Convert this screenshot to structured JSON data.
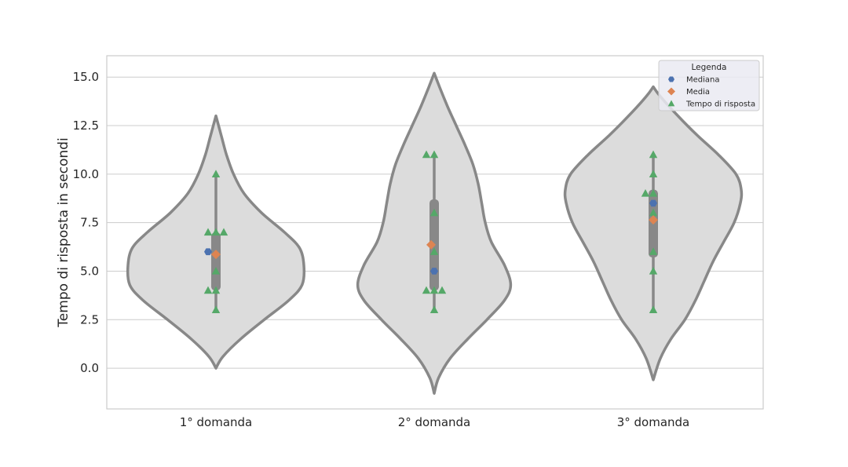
{
  "chart_data": {
    "type": "violin",
    "title": "",
    "xlabel": "",
    "ylabel": "Tempo di risposta in secondi",
    "ylim": [
      -2.1,
      16.1
    ],
    "yticks": [
      0.0,
      2.5,
      5.0,
      7.5,
      10.0,
      12.5,
      15.0
    ],
    "ytick_labels": [
      "0.0",
      "2.5",
      "5.0",
      "7.5",
      "10.0",
      "12.5",
      "15.0"
    ],
    "categories": [
      "1° domanda",
      "2° domanda",
      "3° domanda"
    ],
    "grid": "horizontal",
    "legend": {
      "title": "Legenda",
      "placement": "top-right",
      "entries": [
        {
          "label": "Mediana",
          "marker": "hexagon",
          "color": "#4c72b0"
        },
        {
          "label": "Media",
          "marker": "diamond",
          "color": "#dd8452"
        },
        {
          "label": "Tempo di risposta",
          "marker": "triangle",
          "color": "#55a868"
        }
      ]
    },
    "violins": [
      {
        "category": "1° domanda",
        "range": [
          0.0,
          13.0
        ],
        "quartiles": [
          4.0,
          7.0
        ],
        "whisker": [
          3.0,
          10.0
        ],
        "density": [
          [
            0.0,
            0.0
          ],
          [
            0.6,
            0.08
          ],
          [
            1.5,
            0.28
          ],
          [
            2.5,
            0.55
          ],
          [
            3.5,
            0.83
          ],
          [
            4.3,
            0.98
          ],
          [
            5.3,
            1.0
          ],
          [
            6.2,
            0.95
          ],
          [
            7.0,
            0.78
          ],
          [
            8.0,
            0.52
          ],
          [
            9.0,
            0.32
          ],
          [
            10.0,
            0.2
          ],
          [
            11.0,
            0.12
          ],
          [
            12.0,
            0.06
          ],
          [
            13.0,
            0.0
          ]
        ],
        "median": 6.0,
        "mean": 5.86,
        "responses": [
          3,
          4,
          4,
          5,
          7,
          7,
          7,
          10
        ]
      },
      {
        "category": "2° domanda",
        "range": [
          -1.3,
          15.2
        ],
        "quartiles": [
          4.0,
          8.7
        ],
        "whisker": [
          3.0,
          11.0
        ],
        "density": [
          [
            -1.3,
            0.0
          ],
          [
            -0.5,
            0.05
          ],
          [
            0.5,
            0.18
          ],
          [
            1.5,
            0.38
          ],
          [
            2.5,
            0.6
          ],
          [
            3.5,
            0.8
          ],
          [
            4.3,
            0.87
          ],
          [
            5.3,
            0.8
          ],
          [
            6.5,
            0.65
          ],
          [
            7.5,
            0.58
          ],
          [
            8.5,
            0.54
          ],
          [
            9.5,
            0.5
          ],
          [
            10.5,
            0.44
          ],
          [
            11.5,
            0.35
          ],
          [
            12.5,
            0.25
          ],
          [
            13.5,
            0.15
          ],
          [
            14.5,
            0.06
          ],
          [
            15.2,
            0.0
          ]
        ],
        "median": 5.0,
        "mean": 6.36,
        "responses": [
          3,
          4,
          4,
          4,
          6,
          8,
          11,
          11
        ]
      },
      {
        "category": "3° domanda",
        "range": [
          -0.6,
          14.5
        ],
        "quartiles": [
          5.7,
          9.2
        ],
        "whisker": [
          3.0,
          11.0
        ],
        "density": [
          [
            -0.6,
            0.0
          ],
          [
            0.5,
            0.08
          ],
          [
            1.5,
            0.2
          ],
          [
            2.5,
            0.36
          ],
          [
            3.5,
            0.48
          ],
          [
            4.5,
            0.58
          ],
          [
            5.5,
            0.68
          ],
          [
            6.5,
            0.8
          ],
          [
            7.5,
            0.92
          ],
          [
            8.5,
            0.99
          ],
          [
            9.2,
            1.0
          ],
          [
            10.0,
            0.94
          ],
          [
            11.0,
            0.74
          ],
          [
            12.0,
            0.5
          ],
          [
            13.0,
            0.28
          ],
          [
            14.0,
            0.08
          ],
          [
            14.5,
            0.0
          ]
        ],
        "median": 8.5,
        "mean": 7.64,
        "responses": [
          3,
          5,
          6,
          8,
          9,
          9,
          10,
          11
        ]
      }
    ],
    "colors": {
      "violin_fill": "#dcdcdc",
      "violin_edge": "#888888",
      "box": "#888888",
      "grid": "#cccccc",
      "spine": "#cccccc"
    }
  }
}
